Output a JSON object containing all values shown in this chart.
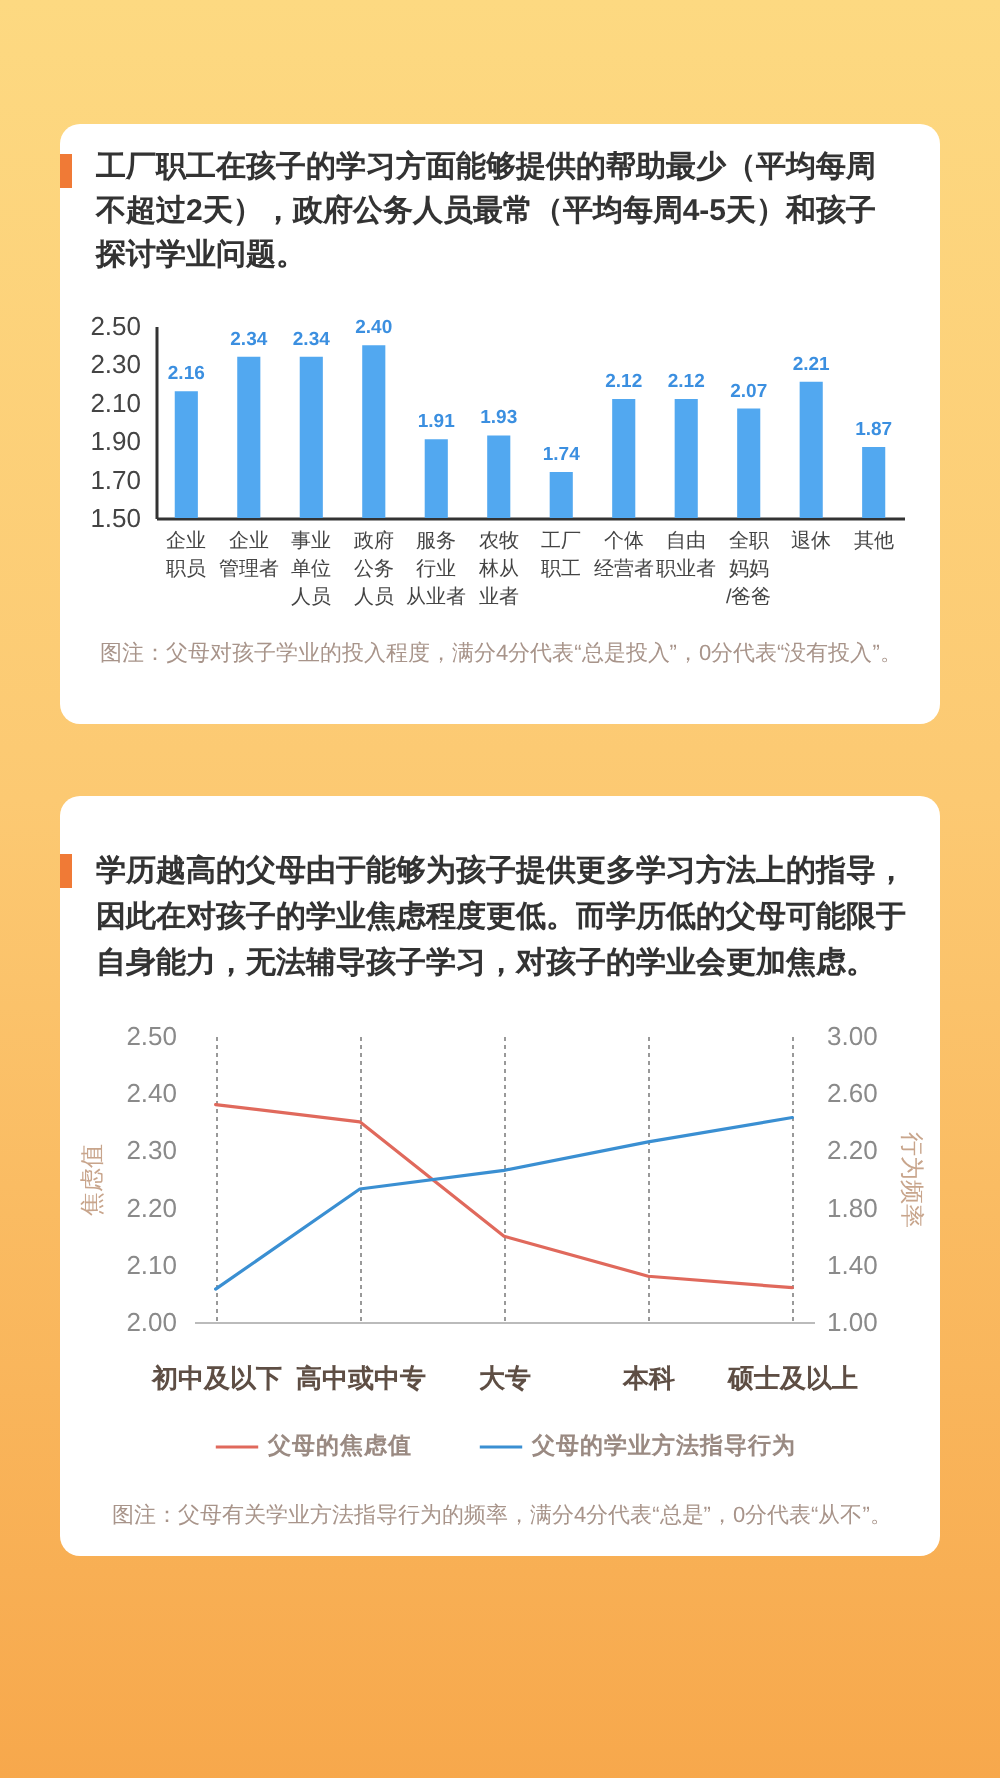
{
  "chart_data": [
    {
      "type": "bar",
      "title": "工厂职工在孩子的学习方面能够提供的帮助最少（平均每周不超过2天），政府公务人员最常（平均每周4-5天）和孩子探讨学业问题。",
      "categories": [
        "企业职员",
        "企业管理者",
        "事业单位人员",
        "政府公务人员",
        "服务行业从业者",
        "农牧林从业者",
        "工厂职工",
        "个体经营者",
        "自由职业者",
        "全职妈妈/爸爸",
        "退休",
        "其他"
      ],
      "values": [
        2.16,
        2.34,
        2.34,
        2.4,
        1.91,
        1.93,
        1.74,
        2.12,
        2.12,
        2.07,
        2.21,
        1.87
      ],
      "value_labels": [
        "2.16",
        "2.34",
        "2.34",
        "2.40",
        "1.91",
        "1.93",
        "1.74",
        "2.12",
        "2.12",
        "2.07",
        "2.21",
        "1.87"
      ],
      "color": "#52a8f0",
      "ylim": [
        1.5,
        2.5
      ],
      "yticks": [
        {
          "value": 1.5,
          "label": "1.50"
        },
        {
          "value": 1.7,
          "label": "1.70"
        },
        {
          "value": 1.9,
          "label": "1.90"
        },
        {
          "value": 2.1,
          "label": "2.10"
        },
        {
          "value": 2.3,
          "label": "2.30"
        },
        {
          "value": 2.5,
          "label": "2.50"
        }
      ],
      "annotations": [
        "图注：父母对孩子学业的投入程度，满分4分代表“总是投入”，0分代表“没有投入”。"
      ]
    },
    {
      "type": "line",
      "title": "学历越高的父母由于能够为孩子提供更多学习方法上的指导，因此在对孩子的学业焦虑程度更低。而学历低的父母可能限于自身能力，无法辅导孩子学习，对孩子的学业会更加焦虑。",
      "categories": [
        "初中及以下",
        "高中或中专",
        "大专",
        "本科",
        "硕士及以上"
      ],
      "series": [
        {
          "name": "父母的焦虑值",
          "color": "#e0695c",
          "values": [
            2.38,
            2.35,
            2.15,
            2.08,
            2.06
          ]
        },
        {
          "name": "父母的学业方法指导行为",
          "color": "#3a8fd2",
          "values": [
            1.23,
            1.93,
            2.06,
            2.26,
            2.43
          ],
          "axis": "y2"
        }
      ],
      "ylabel": "焦虑值",
      "y2label": "行为频率",
      "ylim": [
        2.0,
        2.5
      ],
      "yticks": [
        {
          "value": 2.0,
          "label": "2.00"
        },
        {
          "value": 2.1,
          "label": "2.10"
        },
        {
          "value": 2.2,
          "label": "2.20"
        },
        {
          "value": 2.3,
          "label": "2.30"
        },
        {
          "value": 2.4,
          "label": "2.40"
        },
        {
          "value": 2.5,
          "label": "2.50"
        }
      ],
      "y2lim": [
        1.0,
        3.0
      ],
      "y2ticks": [
        {
          "value": 1.0,
          "label": "1.00"
        },
        {
          "value": 1.4,
          "label": "1.40"
        },
        {
          "value": 1.8,
          "label": "1.80"
        },
        {
          "value": 2.2,
          "label": "2.20"
        },
        {
          "value": 2.6,
          "label": "2.60"
        },
        {
          "value": 3.0,
          "label": "3.00"
        }
      ],
      "grid": "x",
      "legend": "bottom",
      "annotations": [
        "图注：父母有关学业方法指导行为的频率，满分4分代表“总是”，0分代表“从不”。"
      ]
    }
  ]
}
